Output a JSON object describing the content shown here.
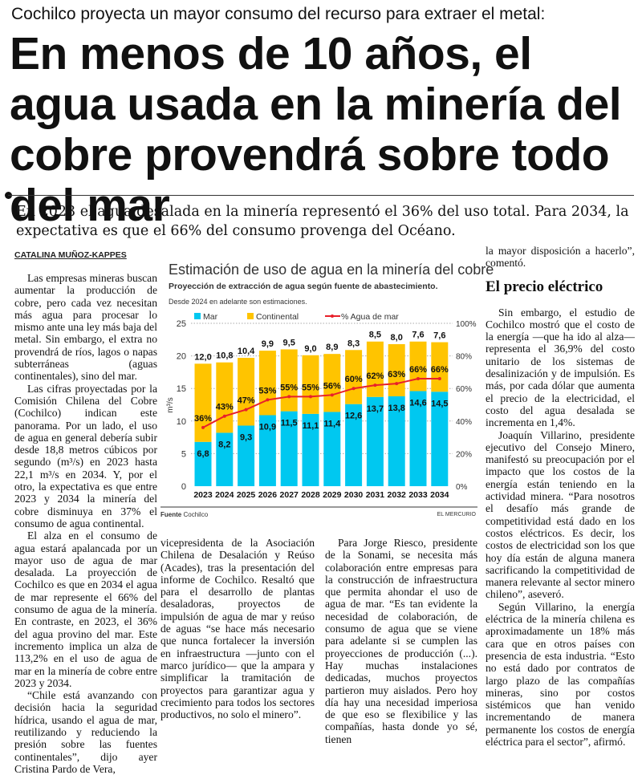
{
  "kicker": "Cochilco proyecta un mayor consumo del recurso para extraer el metal:",
  "headline": "En menos de 10 años, el agua usada en la minería del cobre provendrá sobre todo del mar",
  "deck": "En 2023 el agua desalada en la minería representó el 36% del uso total. Para 2034, la expectativa es que el 66% del consumo provenga del Océano.",
  "byline": "CATALINA MUÑOZ-KAPPES",
  "columns": {
    "c1": [
      "Las empresas mineras buscan aumentar la producción de cobre, pero cada vez necesitan más agua para procesar lo mismo ante una ley más baja del metal. Sin embargo, el extra no provendrá de ríos, lagos o napas subterráneas (aguas continentales), sino del mar.",
      "Las cifras proyectadas por la Comisión Chilena del Cobre (Cochilco) indican este panorama. Por un lado, el uso de agua en general debería subir desde 18,8 metros cúbicos por segundo (m³/s) en 2023 hasta 22,1 m³/s en 2034. Y, por el otro, la expectativa es que entre 2023 y 2034 la minería del cobre disminuya en 37% el consumo de agua continental.",
      "El alza en el consumo de agua estará apalancada por un mayor uso de agua de mar desalada. La proyección de Cochilco es que en 2034 el agua de mar represente el 66% del consumo de agua de la minería. En contraste, en 2023, el 36% del agua provino del mar. Este incremento implica un alza de 113,2% en el uso de agua de mar en la minería de cobre entre 2023 y 2034.",
      "“Chile está avanzando con decisión hacia la seguridad hídrica, usando el agua de mar, reutilizando y reduciendo la presión sobre las fuentes continentales”, dijo ayer Cristina Pardo de Vera,"
    ],
    "c2": [
      "vicepresidenta de la Asociación Chilena de Desalación y Reúso (Acades), tras la presentación del informe de Cochilco. Resaltó que para el desarrollo de plantas desaladoras, proyectos de impulsión de agua de mar y reúso de aguas “se hace más necesario que nunca fortalecer la inversión en infraestructura —junto con el marco jurídico— que la ampara y simplificar la tramitación de proyectos para garantizar agua y crecimiento para todos los sectores productivos, no solo el minero”."
    ],
    "c3": [
      "Para Jorge Riesco, presidente de la Sonami, se necesita más colaboración entre empresas para la construcción de infraestructura que permita ahondar el uso de agua de mar. “Es tan evidente la necesidad de colaboración, de consumo de agua que se viene para adelante si se cumplen las proyecciones de producción (...). Hay muchas instalaciones dedicadas, muchos proyectos partieron muy aislados. Pero hoy día hay una necesidad imperiosa de que eso se flexibilice y las compañías, hasta donde yo sé, tienen"
    ],
    "c4a": "la mayor disposición a hacerlo”, comentó.",
    "c4_heading": "El precio eléctrico",
    "c4": [
      "Sin embargo, el estudio de Cochilco mostró que el costo de la energía —que ha ido al alza— representa el 36,9% del costo unitario de los sistemas de desalinización y de impulsión. Es más, por cada dólar que aumenta el precio de la electricidad, el costo del agua desalada se incrementa en 1,4%.",
      "Joaquín Villarino, presidente ejecutivo del Consejo Minero, manifestó su preocupación por el impacto que los costos de la energía están teniendo en la actividad minera. “Para nosotros el desafío más grande de competitividad está dado en los costos eléctricos. Es decir, los costos de electricidad son los que hoy día están de alguna manera sacrificando la competitividad de manera relevante al sector minero chileno”, aseveró.",
      "Según Villarino, la energía eléctrica de la minería chilena es aproximadamente un 18% más cara que en otros países con presencia de esta industria. “Esto no está dado por contratos de largo plazo de las compañías mineras, sino por costos sistémicos que han venido incrementando de manera permanente los costos de energía eléctrica para el sector”, afirmó."
    ]
  },
  "chart_data": {
    "type": "bar",
    "stacked": true,
    "title": "Estimación de uso de agua en la minería del cobre",
    "subtitle": "Proyección de extracción de agua según fuente de abastecimiento.",
    "note": "Desde 2024 en adelante son estimaciones.",
    "ylabel": "m³/s",
    "ylim": [
      0,
      25
    ],
    "yticks": [
      "0",
      "5",
      "10",
      "15",
      "20",
      "25"
    ],
    "y2lim": [
      0,
      100
    ],
    "y2ticks": [
      "0%",
      "20%",
      "40%",
      "60%",
      "80%",
      "100%"
    ],
    "grid": true,
    "legend_position": "top",
    "categories": [
      "2023",
      "2024",
      "2025",
      "2026",
      "2027",
      "2028",
      "2029",
      "2030",
      "2031",
      "2032",
      "2033",
      "2034"
    ],
    "series": [
      {
        "name": "Mar",
        "color": "#00c8f0",
        "values": [
          6.8,
          8.2,
          9.3,
          10.9,
          11.5,
          11.1,
          11.4,
          12.6,
          13.7,
          13.8,
          14.6,
          14.5
        ],
        "labels": [
          "6,8",
          "8,2",
          "9,3",
          "10,9",
          "11,5",
          "11,1",
          "11,4",
          "12,6",
          "13,7",
          "13,8",
          "14,6",
          "14,5"
        ]
      },
      {
        "name": "Continental",
        "color": "#ffc400",
        "values": [
          12.0,
          10.8,
          10.4,
          9.9,
          9.5,
          9.0,
          8.9,
          8.3,
          8.5,
          8.0,
          7.6,
          7.6
        ],
        "labels": [
          "12,0",
          "10,8",
          "10,4",
          "9,9",
          "9,5",
          "9,0",
          "8,9",
          "8,3",
          "8,5",
          "8,0",
          "7,6",
          "7,6"
        ]
      },
      {
        "name": "% Agua de mar",
        "type": "line",
        "axis": "right",
        "color": "#e8202a",
        "values": [
          36,
          43,
          47,
          53,
          55,
          55,
          56,
          60,
          62,
          63,
          66,
          66
        ],
        "labels": [
          "36%",
          "43%",
          "47%",
          "53%",
          "55%",
          "55%",
          "56%",
          "60%",
          "62%",
          "63%",
          "66%",
          "66%"
        ]
      }
    ],
    "source_label": "Fuente",
    "source": "Cochilco",
    "credit": "EL MERCURIO"
  }
}
